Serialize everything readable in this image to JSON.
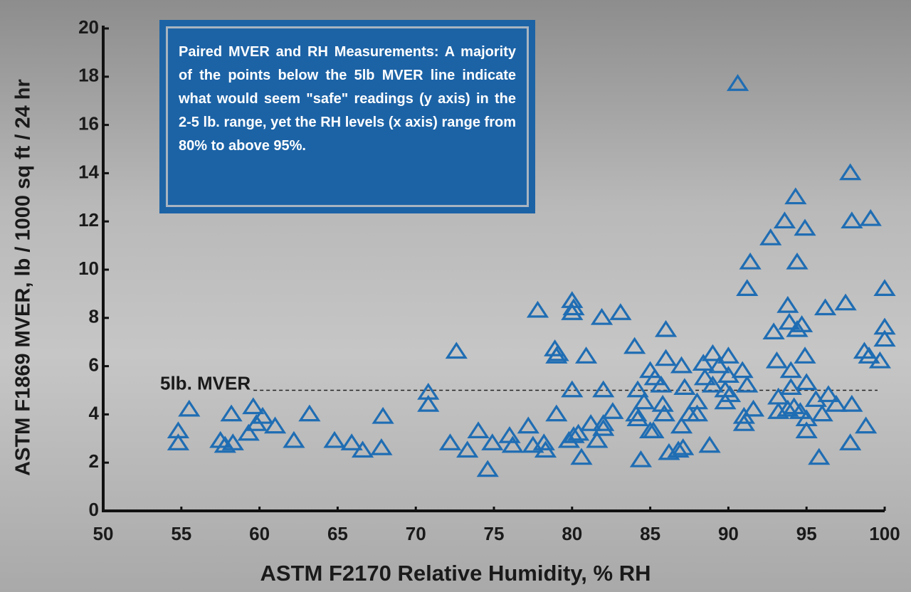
{
  "chart_data": {
    "type": "scatter",
    "xlabel": "ASTM F2170 Relative Humidity, % RH",
    "ylabel": "ASTM F1869 MVER, lb / 1000 sq ft / 24 hr",
    "annotation": "Paired MVER and RH Measurements: A majority of the points below the 5lb MVER line indicate what would seem \"safe\" readings (y axis) in the 2-5 lb. range, yet the RH levels (x axis) range from 80% to above 95%.",
    "reference_line": {
      "value": 5,
      "label": "5lb. MVER"
    },
    "xlim": [
      50,
      100
    ],
    "xticks": [
      50,
      55,
      60,
      65,
      70,
      75,
      80,
      85,
      90,
      95,
      100
    ],
    "ylim": [
      0,
      20
    ],
    "yticks": [
      0,
      2,
      4,
      6,
      8,
      10,
      12,
      14,
      16,
      18,
      20
    ],
    "marker": "triangle",
    "color": "#1f6db3",
    "x": [
      54.8,
      54.8,
      55.5,
      57.5,
      57.8,
      58.2,
      58.3,
      59.3,
      59.6,
      59.8,
      60.2,
      61,
      62.2,
      63.2,
      64.8,
      65.9,
      66.6,
      67.8,
      67.9,
      70.8,
      70.8,
      72.2,
      72.6,
      73.3,
      74,
      74.6,
      74.9,
      76,
      76.2,
      77.2,
      77.5,
      77.8,
      78.2,
      78.3,
      78.9,
      79,
      79,
      79.1,
      79.8,
      80,
      80,
      80.1,
      80,
      80.1,
      80.4,
      80.6,
      80.9,
      81.2,
      81.6,
      81.9,
      82,
      82,
      82,
      82.6,
      83.1,
      84,
      84.1,
      84.2,
      84.2,
      84.4,
      84.6,
      85,
      85,
      85.2,
      85.3,
      85.7,
      85.8,
      85.9,
      86,
      86,
      86.2,
      86.8,
      87,
      87,
      87.1,
      87.2,
      87.5,
      88,
      88,
      88.4,
      88.5,
      88.8,
      89,
      89,
      89.4,
      89.8,
      89.8,
      90,
      90,
      90.1,
      90.6,
      90.9,
      91,
      91,
      91.2,
      91.2,
      91.4,
      91.6,
      92.7,
      92.9,
      93.1,
      93.2,
      93.2,
      93.6,
      93.8,
      93.8,
      93.9,
      94,
      94,
      94.2,
      94.3,
      94.4,
      94.4,
      94.6,
      94.7,
      94.9,
      94.9,
      95,
      95,
      95,
      95.6,
      95.8,
      96,
      96.2,
      96.4,
      96.9,
      97.5,
      97.8,
      97.9,
      97.8,
      97.9,
      98.7,
      98.8,
      99.1,
      99,
      99.7,
      100,
      100,
      100
    ],
    "y": [
      3.3,
      2.8,
      4.2,
      2.9,
      2.7,
      4.0,
      2.8,
      3.2,
      4.3,
      3.6,
      3.9,
      3.5,
      2.9,
      4.0,
      2.9,
      2.8,
      2.5,
      2.6,
      3.9,
      4.9,
      4.4,
      2.8,
      6.6,
      2.5,
      3.3,
      1.7,
      2.8,
      3.1,
      2.7,
      3.5,
      2.7,
      8.3,
      2.8,
      2.5,
      6.7,
      6.4,
      4.0,
      6.5,
      2.9,
      8.7,
      8.2,
      8.4,
      5.0,
      3.1,
      3.2,
      2.2,
      6.4,
      3.6,
      2.9,
      8.0,
      3.6,
      5.0,
      3.4,
      4.1,
      8.2,
      6.8,
      4.0,
      3.8,
      5.0,
      2.1,
      4.5,
      5.8,
      3.3,
      3.3,
      5.5,
      5.2,
      4.4,
      4.0,
      6.3,
      7.5,
      2.4,
      2.5,
      3.5,
      6.0,
      2.6,
      5.1,
      4.0,
      4.5,
      4.0,
      6.1,
      5.5,
      2.7,
      6.5,
      5.2,
      6.0,
      5.0,
      4.5,
      6.4,
      5.6,
      4.8,
      17.7,
      5.8,
      3.6,
      3.9,
      9.2,
      5.2,
      10.3,
      4.2,
      11.3,
      7.4,
      6.2,
      4.7,
      4.1,
      12.0,
      8.5,
      4.2,
      7.8,
      5.8,
      5.1,
      4.3,
      13.0,
      10.3,
      7.5,
      4.1,
      7.7,
      11.7,
      6.4,
      3.8,
      3.3,
      5.3,
      4.6,
      2.2,
      4.0,
      8.4,
      4.8,
      4.4,
      8.6,
      14.0,
      12.0,
      2.8,
      4.4,
      6.6,
      3.5,
      12.1,
      6.4,
      6.2,
      9.2,
      7.6,
      7.1
    ]
  }
}
